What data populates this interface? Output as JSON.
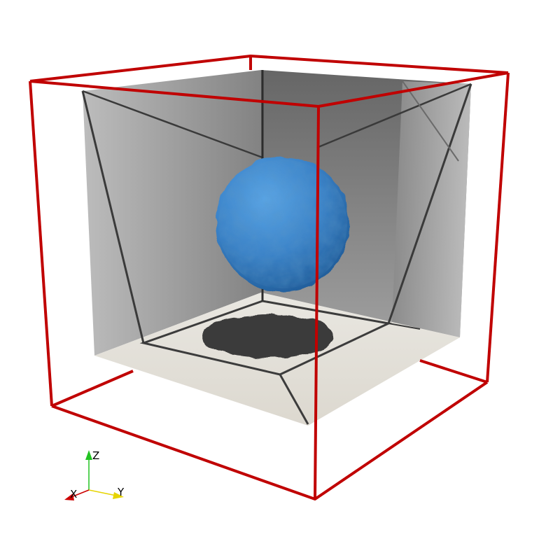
{
  "scene": {
    "background_color": "#ffffff",
    "outline_color": "#c00000",
    "sphere_color": "#3a82c8",
    "shadow_color": "#3a3a3a",
    "box_wall_color": "#8a8a8a",
    "box_floor_color": "#e6e3dc",
    "box_edge_color": "#3c3c3c"
  },
  "orientation_axes": {
    "x_label": "X",
    "y_label": "Y",
    "z_label": "Z",
    "x_color": "#cc0000",
    "y_color": "#e6d400",
    "z_color": "#22c322"
  }
}
